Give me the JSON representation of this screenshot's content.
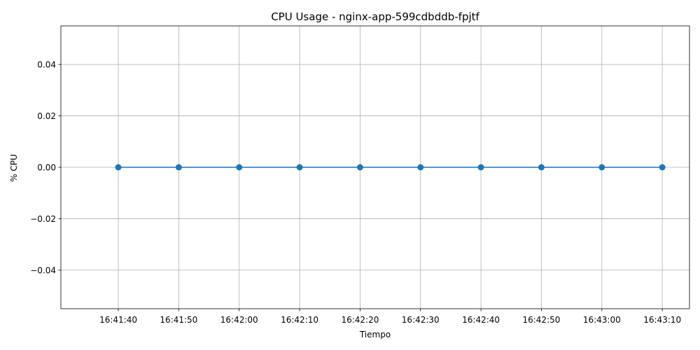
{
  "chart_data": {
    "type": "line",
    "title": "CPU Usage - nginx-app-599cdbddb-fpjtf",
    "xlabel": "Tiempo",
    "ylabel": "% CPU",
    "x": [
      100,
      110,
      120,
      130,
      140,
      150,
      160,
      170,
      180,
      190
    ],
    "x_units": "seconds after 16:40:00",
    "values": [
      0,
      0,
      0,
      0,
      0,
      0,
      0,
      0,
      0,
      0
    ],
    "xlim": [
      90.5,
      194.5
    ],
    "ylim": [
      -0.055,
      0.055
    ],
    "xticks": [
      {
        "value": 100,
        "label": "16:41:40"
      },
      {
        "value": 110,
        "label": "16:41:50"
      },
      {
        "value": 120,
        "label": "16:42:00"
      },
      {
        "value": 130,
        "label": "16:42:10"
      },
      {
        "value": 140,
        "label": "16:42:20"
      },
      {
        "value": 150,
        "label": "16:42:30"
      },
      {
        "value": 160,
        "label": "16:42:40"
      },
      {
        "value": 170,
        "label": "16:42:50"
      },
      {
        "value": 180,
        "label": "16:43:00"
      },
      {
        "value": 190,
        "label": "16:43:10"
      }
    ],
    "yticks": [
      {
        "value": 0.04,
        "label": "0.04"
      },
      {
        "value": 0.02,
        "label": "0.02"
      },
      {
        "value": 0.0,
        "label": "0.00"
      },
      {
        "value": -0.02,
        "label": "−0.02"
      },
      {
        "value": -0.04,
        "label": "−0.04"
      }
    ],
    "grid": true,
    "series_color": "#1f77b4",
    "marker": "circle"
  }
}
